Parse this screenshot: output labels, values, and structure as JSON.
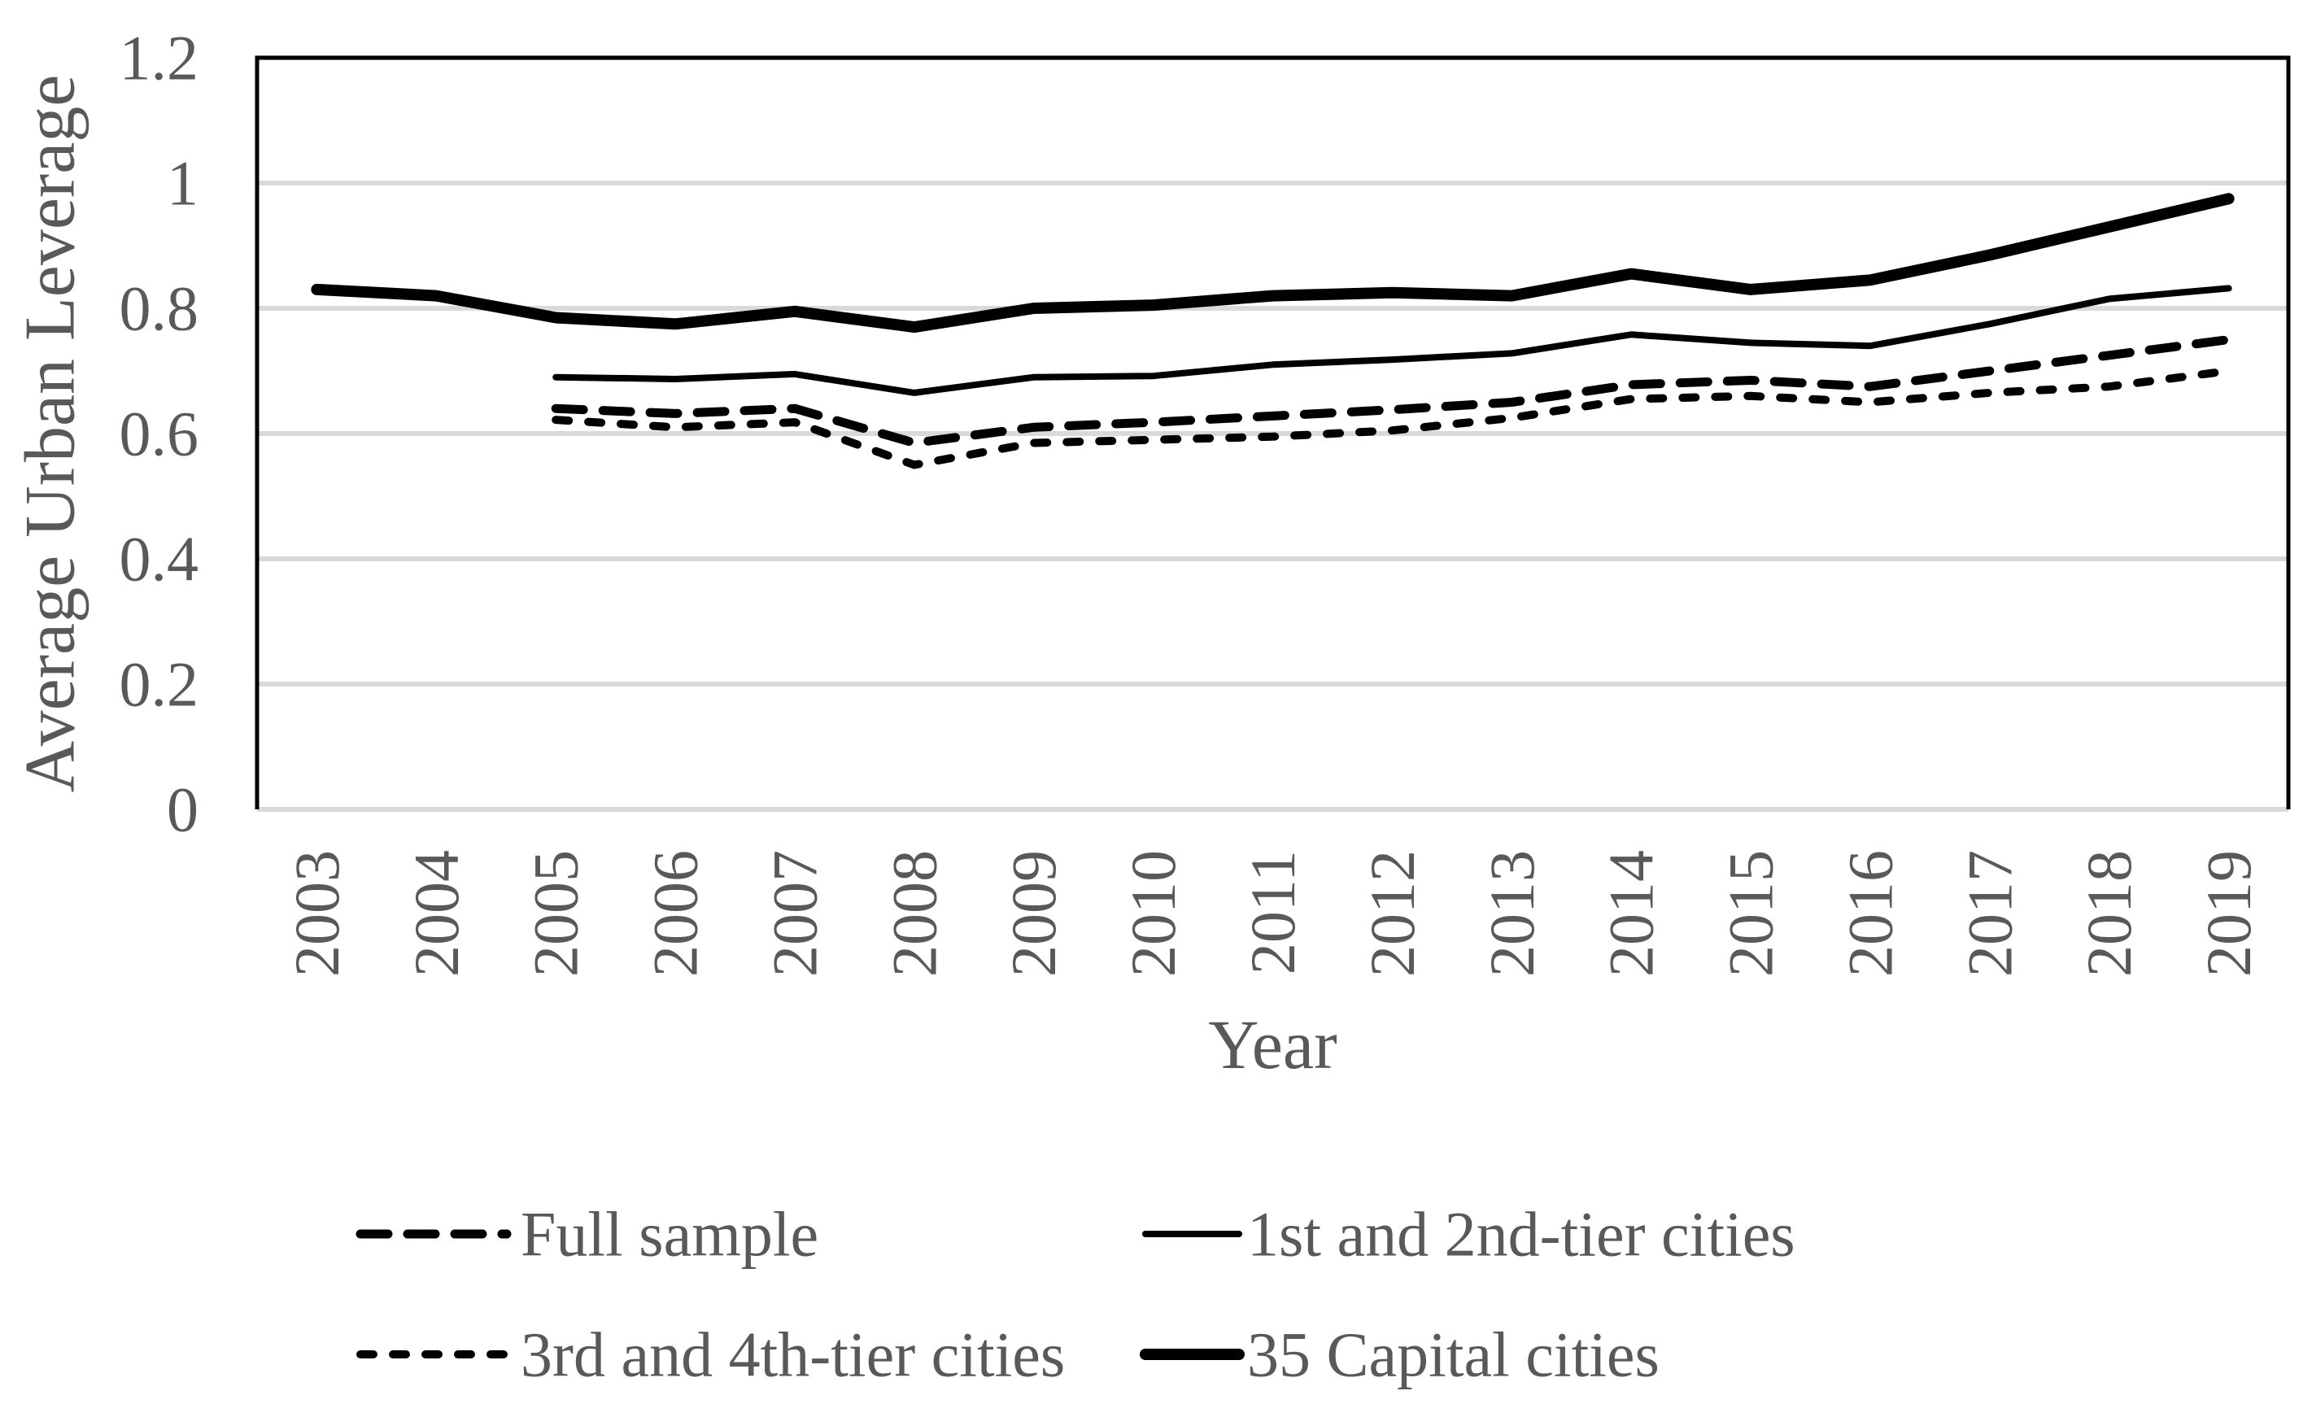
{
  "page": {
    "background": "#ffffff"
  },
  "colors": {
    "series_line": "#000000",
    "gridline": "#d9d9d9",
    "plot_border": "#000000",
    "text": "#595959"
  },
  "chart_data": {
    "type": "line",
    "title": "",
    "xlabel": "Year",
    "ylabel": "Average Urban Leverage",
    "x": [
      2003,
      2004,
      2005,
      2006,
      2007,
      2008,
      2009,
      2010,
      2011,
      2012,
      2013,
      2014,
      2015,
      2016,
      2017,
      2018,
      2019
    ],
    "x_tick_labels": [
      "2003",
      "2004",
      "2005",
      "2006",
      "2007",
      "2008",
      "2009",
      "2010",
      "2011",
      "2012",
      "2013",
      "2014",
      "2015",
      "2016",
      "2017",
      "2018",
      "2019"
    ],
    "ylim": [
      0,
      1.2
    ],
    "yticks": [
      0,
      0.2,
      0.4,
      0.6,
      0.8,
      1,
      1.2
    ],
    "ytick_labels": [
      "0",
      "0.2",
      "0.4",
      "0.6",
      "0.8",
      "1",
      "1.2"
    ],
    "grid": "horizontal-only",
    "legend_position": "bottom",
    "series": [
      {
        "name": "Full sample",
        "style": "long-dash",
        "color": "#000000",
        "values": [
          null,
          null,
          0.64,
          0.632,
          0.64,
          0.585,
          0.61,
          0.618,
          0.628,
          0.638,
          0.65,
          0.678,
          0.685,
          0.675,
          0.7,
          0.725,
          0.75
        ]
      },
      {
        "name": "1st and 2nd-tier cities",
        "style": "solid-thin",
        "color": "#000000",
        "values": [
          null,
          null,
          0.69,
          0.687,
          0.695,
          0.665,
          0.69,
          0.692,
          0.71,
          0.718,
          0.728,
          0.758,
          0.745,
          0.74,
          0.775,
          0.815,
          0.832
        ]
      },
      {
        "name": "3rd and 4th-tier cities",
        "style": "short-dash",
        "color": "#000000",
        "values": [
          null,
          null,
          0.622,
          0.61,
          0.618,
          0.55,
          0.585,
          0.59,
          0.595,
          0.605,
          0.625,
          0.655,
          0.66,
          0.65,
          0.665,
          0.675,
          0.7
        ]
      },
      {
        "name": "35 Capital cities",
        "style": "solid-thick",
        "color": "#000000",
        "values": [
          0.83,
          0.82,
          0.785,
          0.775,
          0.795,
          0.77,
          0.8,
          0.805,
          0.82,
          0.825,
          0.82,
          0.855,
          0.83,
          0.845,
          0.885,
          0.93,
          0.975
        ]
      }
    ],
    "legend_rows": [
      [
        "Full sample",
        "1st and 2nd-tier cities"
      ],
      [
        "3rd and 4th-tier cities",
        "35 Capital cities"
      ]
    ]
  }
}
